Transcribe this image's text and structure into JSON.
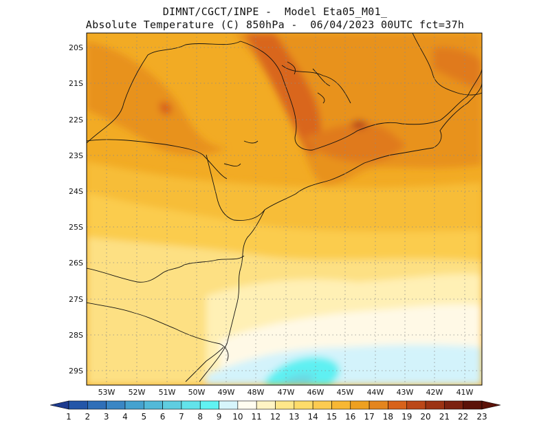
{
  "header": {
    "line1": "DIMNT/CGCT/INPE -  Model Eta05_M01_",
    "line2": "Absolute Temperature (C) 850hPa -  06/04/2023 00UTC fct=37h"
  },
  "map": {
    "lon_range": [
      -54.0,
      -40.5
    ],
    "lat_range": [
      -29.5,
      -19.75
    ],
    "lat_ticks": [
      "20S",
      "21S",
      "22S",
      "23S",
      "24S",
      "25S",
      "26S",
      "27S",
      "28S",
      "29S"
    ],
    "lon_ticks": [
      "53W",
      "52W",
      "51W",
      "50W",
      "49W",
      "48W",
      "47W",
      "46W",
      "45W",
      "44W",
      "43W",
      "42W",
      "41W"
    ]
  },
  "colorbar": {
    "labels": [
      "1",
      "2",
      "3",
      "4",
      "5",
      "6",
      "7",
      "8",
      "9",
      "10",
      "11",
      "12",
      "13",
      "14",
      "15",
      "16",
      "17",
      "18",
      "19",
      "20",
      "21",
      "22",
      "23"
    ],
    "colors": [
      "#1d3b8f",
      "#2356a8",
      "#2f6fb8",
      "#3a86c4",
      "#45a2cf",
      "#52b9d8",
      "#5fcde0",
      "#62e3ea",
      "#60f2f2",
      "#d6f5fb",
      "#fffdf0",
      "#fff4c4",
      "#ffe78a",
      "#fedc6a",
      "#fccb50",
      "#f7b734",
      "#eea020",
      "#e4851e",
      "#d8621a",
      "#bb4718",
      "#9c3313",
      "#7c2210",
      "#5b1208"
    ]
  }
}
